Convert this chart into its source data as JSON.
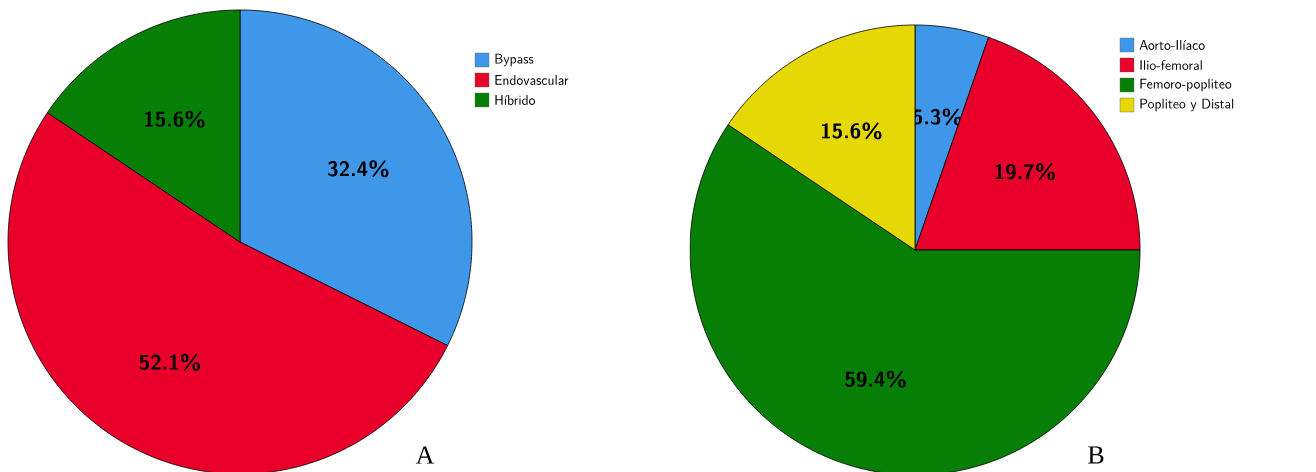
{
  "chart_data": [
    {
      "type": "pie",
      "title": "A",
      "categories": [
        "Bypass",
        "Endovascular",
        "Híbrido"
      ],
      "values": [
        32.4,
        52.1,
        15.6
      ],
      "colors": [
        "#3f97ea",
        "#e8002b",
        "#077f07"
      ],
      "value_labels": [
        "32.4%",
        "52.1%",
        "15.6%"
      ],
      "legend": "top right"
    },
    {
      "type": "pie",
      "title": "B",
      "categories": [
        "Aorto-Ilíaco",
        "Ilio-femoral",
        "Femoro-popliteo",
        "Popliteo y Distal"
      ],
      "values": [
        5.3,
        19.7,
        59.4,
        15.6
      ],
      "colors": [
        "#3f97ea",
        "#e8002b",
        "#077f07",
        "#e5d805"
      ],
      "value_labels": [
        "5.3%",
        "19.7%",
        "59.4%",
        "15.6%"
      ],
      "legend": "top right"
    }
  ]
}
